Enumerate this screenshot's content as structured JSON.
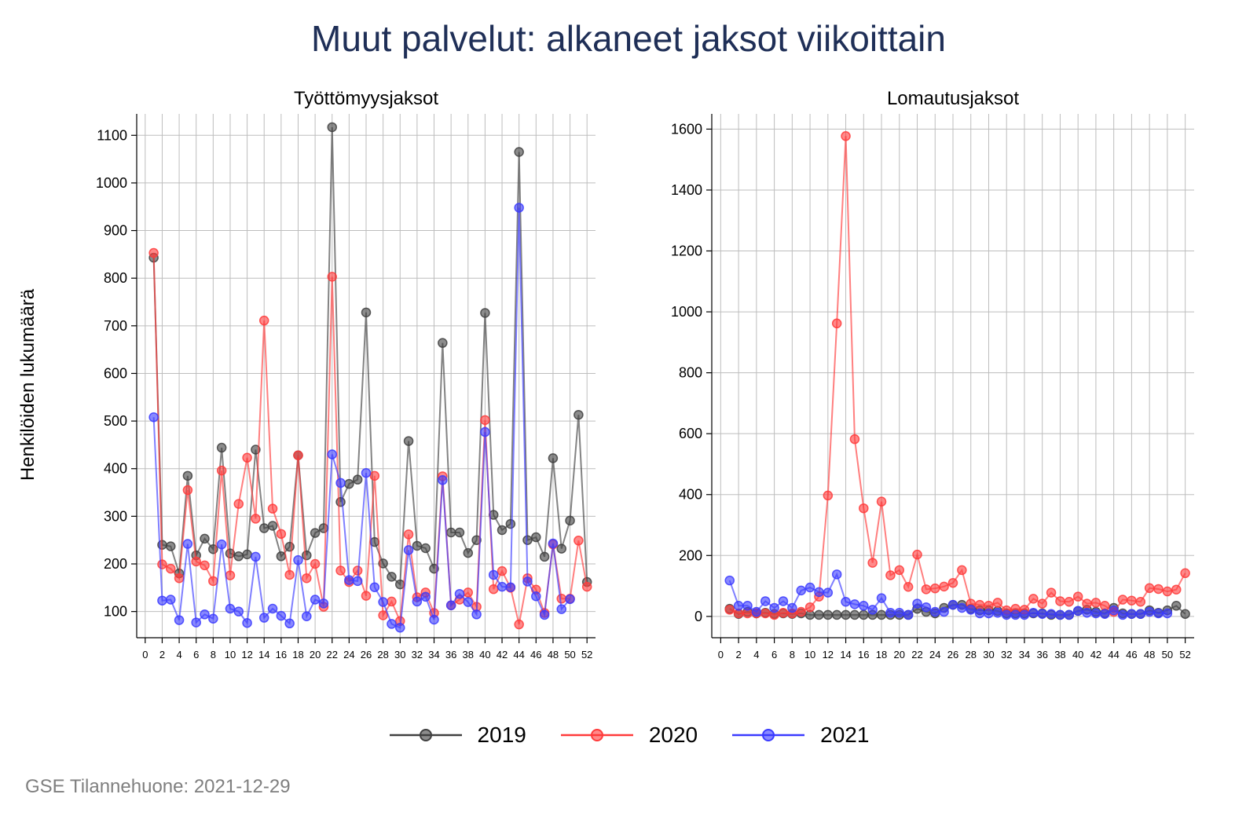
{
  "title": "Muut palvelut: alkaneet jaksot viikoittain",
  "footer": "GSE Tilannehuone: 2021-12-29",
  "colors": {
    "2019": "#404040",
    "2020": "#ff3b3b",
    "2021": "#3b3bff"
  },
  "chart_data": [
    {
      "type": "line",
      "title": "Työttömyysjaksot",
      "ylabel": "Henkilöiden lukumäärä",
      "xlabel": "",
      "xlim": [
        -1,
        53
      ],
      "ylim": [
        45,
        1145
      ],
      "yticks": [
        100,
        200,
        300,
        400,
        500,
        600,
        700,
        800,
        900,
        1000,
        1100
      ],
      "xticks": [
        0,
        2,
        4,
        6,
        8,
        10,
        12,
        14,
        16,
        18,
        20,
        22,
        24,
        26,
        28,
        30,
        32,
        34,
        36,
        38,
        40,
        42,
        44,
        46,
        48,
        50,
        52
      ],
      "grid": true,
      "legend_position": "bottom",
      "series": [
        {
          "name": "2019",
          "x": [
            1,
            2,
            3,
            4,
            5,
            6,
            7,
            8,
            9,
            10,
            11,
            12,
            13,
            14,
            15,
            16,
            17,
            18,
            19,
            20,
            21,
            22,
            23,
            24,
            25,
            26,
            27,
            28,
            29,
            30,
            31,
            32,
            33,
            34,
            35,
            36,
            37,
            38,
            39,
            40,
            41,
            42,
            43,
            44,
            45,
            46,
            47,
            48,
            49,
            50,
            51,
            52
          ],
          "values": [
            843,
            240,
            237,
            180,
            385,
            218,
            253,
            231,
            444,
            222,
            216,
            220,
            440,
            275,
            280,
            216,
            236,
            428,
            218,
            265,
            275,
            1117,
            330,
            368,
            377,
            728,
            246,
            201,
            173,
            157,
            458,
            238,
            233,
            190,
            664,
            266,
            266,
            223,
            250,
            727,
            303,
            271,
            284,
            1065,
            250,
            256,
            215,
            422,
            232,
            291,
            513,
            162
          ]
        },
        {
          "name": "2020",
          "x": [
            1,
            2,
            3,
            4,
            5,
            6,
            7,
            8,
            9,
            10,
            11,
            12,
            13,
            14,
            15,
            16,
            17,
            18,
            19,
            20,
            21,
            22,
            23,
            24,
            25,
            26,
            27,
            28,
            29,
            30,
            31,
            32,
            33,
            34,
            35,
            36,
            37,
            38,
            39,
            40,
            41,
            42,
            43,
            44,
            45,
            46,
            47,
            48,
            49,
            50,
            51,
            52
          ],
          "values": [
            853,
            199,
            190,
            170,
            355,
            205,
            197,
            164,
            396,
            176,
            326,
            423,
            295,
            711,
            316,
            263,
            177,
            428,
            170,
            200,
            110,
            803,
            186,
            162,
            186,
            133,
            385,
            92,
            121,
            80,
            262,
            130,
            140,
            97,
            384,
            113,
            125,
            140,
            110,
            502,
            147,
            185,
            150,
            73,
            170,
            146,
            97,
            241,
            127,
            127,
            249,
            152
          ]
        },
        {
          "name": "2021",
          "x": [
            1,
            2,
            3,
            4,
            5,
            6,
            7,
            8,
            9,
            10,
            11,
            12,
            13,
            14,
            15,
            16,
            17,
            18,
            19,
            20,
            21,
            22,
            23,
            24,
            25,
            26,
            27,
            28,
            29,
            30,
            31,
            32,
            33,
            34,
            35,
            36,
            37,
            38,
            39,
            40,
            41,
            42,
            43,
            44,
            45,
            46,
            47,
            48,
            49,
            50
          ],
          "values": [
            508,
            123,
            125,
            82,
            242,
            77,
            94,
            85,
            241,
            106,
            100,
            76,
            215,
            87,
            106,
            91,
            75,
            208,
            90,
            125,
            117,
            430,
            370,
            166,
            164,
            391,
            151,
            120,
            74,
            66,
            229,
            121,
            131,
            83,
            376,
            113,
            137,
            120,
            94,
            477,
            177,
            152,
            151,
            948,
            163,
            132,
            93,
            243,
            105,
            126
          ]
        }
      ]
    },
    {
      "type": "line",
      "title": "Lomautusjaksot",
      "xlabel": "",
      "ylabel": "",
      "xlim": [
        -1,
        53
      ],
      "ylim": [
        -70,
        1650
      ],
      "yticks": [
        0,
        200,
        400,
        600,
        800,
        1000,
        1200,
        1400,
        1600
      ],
      "xticks": [
        0,
        2,
        4,
        6,
        8,
        10,
        12,
        14,
        16,
        18,
        20,
        22,
        24,
        26,
        28,
        30,
        32,
        34,
        36,
        38,
        40,
        42,
        44,
        46,
        48,
        50,
        52
      ],
      "grid": true,
      "legend_position": "bottom",
      "series": [
        {
          "name": "2019",
          "x": [
            1,
            2,
            3,
            4,
            5,
            6,
            7,
            8,
            9,
            10,
            11,
            12,
            13,
            14,
            15,
            16,
            17,
            18,
            19,
            20,
            21,
            22,
            23,
            24,
            25,
            26,
            27,
            28,
            29,
            30,
            31,
            32,
            33,
            34,
            35,
            36,
            37,
            38,
            39,
            40,
            41,
            42,
            43,
            44,
            45,
            46,
            47,
            48,
            49,
            50,
            51,
            52
          ],
          "values": [
            25,
            8,
            15,
            10,
            12,
            8,
            10,
            8,
            10,
            5,
            5,
            5,
            5,
            5,
            5,
            5,
            5,
            5,
            5,
            5,
            5,
            25,
            15,
            10,
            28,
            38,
            38,
            25,
            20,
            20,
            18,
            10,
            10,
            10,
            10,
            10,
            5,
            5,
            5,
            18,
            22,
            15,
            10,
            28,
            10,
            8,
            8,
            20,
            12,
            20,
            35,
            8
          ]
        },
        {
          "name": "2020",
          "x": [
            1,
            2,
            3,
            4,
            5,
            6,
            7,
            8,
            9,
            10,
            11,
            12,
            13,
            14,
            15,
            16,
            17,
            18,
            19,
            20,
            21,
            22,
            23,
            24,
            25,
            26,
            27,
            28,
            29,
            30,
            31,
            32,
            33,
            34,
            35,
            36,
            37,
            38,
            39,
            40,
            41,
            42,
            43,
            44,
            45,
            46,
            47,
            48,
            49,
            50,
            51,
            52
          ],
          "values": [
            22,
            10,
            10,
            10,
            10,
            5,
            12,
            10,
            15,
            30,
            65,
            397,
            962,
            1577,
            582,
            355,
            176,
            377,
            135,
            152,
            97,
            203,
            89,
            92,
            98,
            110,
            152,
            42,
            38,
            35,
            45,
            20,
            25,
            22,
            58,
            42,
            78,
            50,
            48,
            65,
            42,
            45,
            35,
            15,
            55,
            52,
            48,
            93,
            90,
            82,
            88,
            142
          ]
        },
        {
          "name": "2021",
          "x": [
            1,
            2,
            3,
            4,
            5,
            6,
            7,
            8,
            9,
            10,
            11,
            12,
            13,
            14,
            15,
            16,
            17,
            18,
            19,
            20,
            21,
            22,
            23,
            24,
            25,
            26,
            27,
            28,
            29,
            30,
            31,
            32,
            33,
            34,
            35,
            36,
            37,
            38,
            39,
            40,
            41,
            42,
            43,
            44,
            45,
            46,
            47,
            48,
            49,
            50
          ],
          "values": [
            118,
            35,
            35,
            15,
            50,
            28,
            50,
            28,
            85,
            95,
            80,
            78,
            138,
            48,
            40,
            35,
            22,
            60,
            12,
            12,
            5,
            42,
            30,
            15,
            15,
            38,
            28,
            22,
            10,
            10,
            12,
            5,
            5,
            5,
            12,
            8,
            8,
            5,
            5,
            18,
            12,
            10,
            8,
            20,
            5,
            8,
            8,
            15,
            10,
            10
          ]
        }
      ]
    }
  ]
}
